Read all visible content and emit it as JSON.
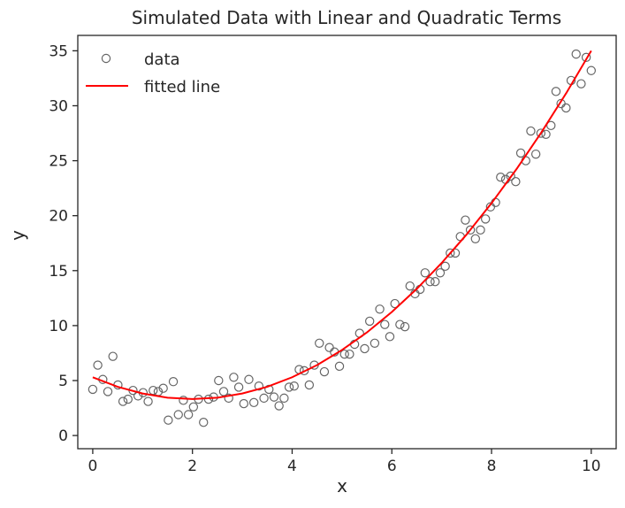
{
  "chart_data": {
    "type": "scatter",
    "title": "Simulated Data with Linear and Quadratic Terms",
    "xlabel": "x",
    "ylabel": "y",
    "xlim": [
      -0.3,
      10.5
    ],
    "ylim": [
      -1.2,
      36.4
    ],
    "xticks": [
      0,
      2,
      4,
      6,
      8,
      10
    ],
    "yticks": [
      0,
      5,
      10,
      15,
      20,
      25,
      30,
      35
    ],
    "grid": false,
    "legend": {
      "placement": "top-left",
      "entries": [
        "data",
        "fitted line"
      ]
    },
    "series": [
      {
        "name": "data",
        "kind": "scatter",
        "color": "#666666",
        "x_start": 0,
        "x_end": 10,
        "y": [
          4.2,
          6.4,
          5.1,
          4.0,
          7.2,
          4.6,
          3.1,
          3.3,
          4.1,
          3.6,
          3.9,
          3.1,
          4.1,
          4.0,
          4.3,
          1.4,
          4.9,
          1.9,
          3.2,
          1.9,
          2.6,
          3.3,
          1.2,
          3.3,
          3.5,
          5.0,
          4.0,
          3.4,
          5.3,
          4.4,
          2.9,
          5.1,
          3.0,
          4.5,
          3.4,
          4.2,
          3.5,
          2.7,
          3.4,
          4.4,
          4.5,
          6.0,
          5.9,
          4.6,
          6.4,
          8.4,
          5.8,
          8.0,
          7.6,
          6.3,
          7.4,
          7.4,
          8.3,
          9.3,
          7.9,
          10.4,
          8.4,
          11.5,
          10.1,
          9.0,
          12.0,
          10.1,
          9.9,
          13.6,
          12.9,
          13.3,
          14.8,
          14.0,
          14.0,
          14.8,
          15.4,
          16.6,
          16.6,
          18.1,
          19.6,
          18.7,
          17.9,
          18.7,
          19.7,
          20.8,
          21.2,
          23.5,
          23.3,
          23.6,
          23.1,
          25.7,
          25.0,
          27.7,
          25.6,
          27.5,
          27.4,
          28.2,
          31.3,
          30.2,
          29.8,
          32.3,
          34.7,
          32.0,
          34.4,
          33.2
        ]
      },
      {
        "name": "fitted line",
        "kind": "line",
        "color": "#ff0000",
        "x": [
          0,
          0.5,
          1,
          1.5,
          2,
          2.5,
          3,
          3.5,
          4,
          4.5,
          5,
          5.5,
          6,
          6.5,
          7,
          7.5,
          8,
          8.5,
          9,
          9.5,
          10
        ],
        "y": [
          5.3,
          4.43,
          3.82,
          3.44,
          3.32,
          3.44,
          3.82,
          4.43,
          5.3,
          6.41,
          7.78,
          9.38,
          11.24,
          13.34,
          15.7,
          18.29,
          21.14,
          24.23,
          27.58,
          31.16,
          35.0
        ]
      }
    ]
  }
}
